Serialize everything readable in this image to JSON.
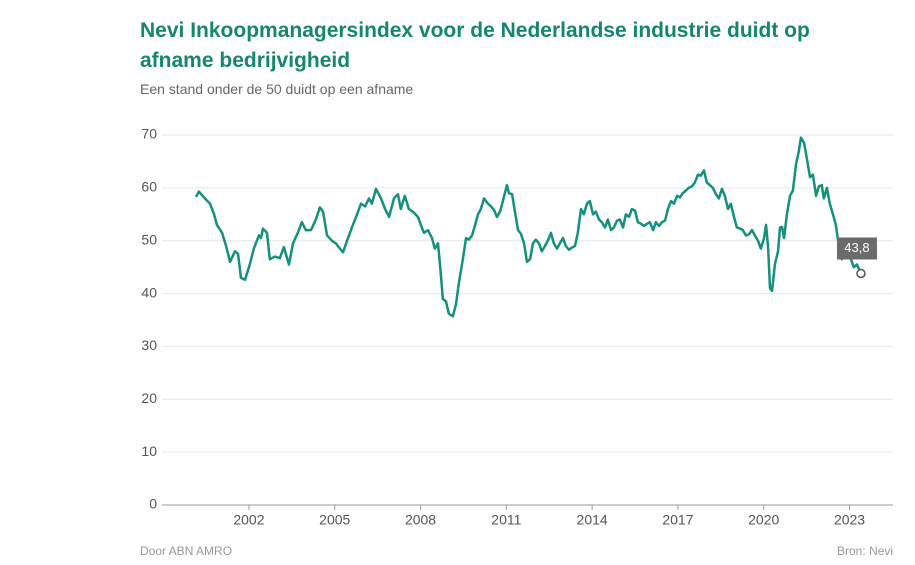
{
  "chart_data": {
    "type": "line",
    "title": "Nevi Inkoopmanagersindex voor de Nederlandse industrie duidt op afname bedrijvigheid",
    "subtitle": "Een stand onder de 50 duidt op een afname",
    "credit": "Door ABN AMRO",
    "source": "Bron: Nevi",
    "xlim": [
      1998.96,
      2024.52
    ],
    "xticks": [
      2002,
      2005,
      2008,
      2011,
      2014,
      2017,
      2020,
      2023
    ],
    "ylim": [
      0,
      70
    ],
    "yticks": [
      0,
      10,
      20,
      30,
      40,
      50,
      60,
      70
    ],
    "grid": true,
    "x": [
      2000.15,
      2000.25,
      2000.46,
      2000.64,
      2000.78,
      2000.88,
      2001.06,
      2001.2,
      2001.34,
      2001.51,
      2001.62,
      2001.72,
      2001.86,
      2002.03,
      2002.17,
      2002.35,
      2002.42,
      2002.49,
      2002.63,
      2002.73,
      2002.91,
      2003.08,
      2003.22,
      2003.4,
      2003.54,
      2003.71,
      2003.85,
      2003.99,
      2004.17,
      2004.34,
      2004.48,
      2004.59,
      2004.73,
      2004.9,
      2005.04,
      2005.18,
      2005.29,
      2005.43,
      2005.6,
      2005.78,
      2005.92,
      2006.06,
      2006.2,
      2006.3,
      2006.44,
      2006.62,
      2006.76,
      2006.9,
      2007.07,
      2007.21,
      2007.31,
      2007.45,
      2007.59,
      2007.73,
      2007.91,
      2008.01,
      2008.12,
      2008.26,
      2008.4,
      2008.5,
      2008.61,
      2008.68,
      2008.78,
      2008.89,
      2008.99,
      2009.13,
      2009.24,
      2009.34,
      2009.48,
      2009.59,
      2009.69,
      2009.8,
      2009.9,
      2010.01,
      2010.11,
      2010.22,
      2010.36,
      2010.46,
      2010.57,
      2010.67,
      2010.78,
      2010.88,
      2011.02,
      2011.09,
      2011.2,
      2011.3,
      2011.41,
      2011.51,
      2011.62,
      2011.72,
      2011.83,
      2011.93,
      2012.03,
      2012.14,
      2012.24,
      2012.35,
      2012.45,
      2012.56,
      2012.66,
      2012.77,
      2012.87,
      2012.98,
      2013.08,
      2013.19,
      2013.29,
      2013.4,
      2013.5,
      2013.61,
      2013.71,
      2013.82,
      2013.92,
      2014.03,
      2014.13,
      2014.24,
      2014.34,
      2014.45,
      2014.55,
      2014.66,
      2014.76,
      2014.87,
      2014.97,
      2015.08,
      2015.18,
      2015.29,
      2015.39,
      2015.5,
      2015.6,
      2015.71,
      2015.81,
      2015.92,
      2016.02,
      2016.13,
      2016.23,
      2016.34,
      2016.44,
      2016.55,
      2016.65,
      2016.76,
      2016.86,
      2016.97,
      2017.07,
      2017.17,
      2017.28,
      2017.38,
      2017.49,
      2017.59,
      2017.7,
      2017.8,
      2017.91,
      2018.01,
      2018.12,
      2018.22,
      2018.33,
      2018.43,
      2018.54,
      2018.64,
      2018.75,
      2018.85,
      2018.96,
      2019.06,
      2019.17,
      2019.27,
      2019.38,
      2019.48,
      2019.59,
      2019.69,
      2019.8,
      2019.9,
      2020.01,
      2020.08,
      2020.15,
      2020.22,
      2020.29,
      2020.39,
      2020.5,
      2020.57,
      2020.64,
      2020.71,
      2020.81,
      2020.92,
      2021.02,
      2021.13,
      2021.23,
      2021.3,
      2021.41,
      2021.51,
      2021.62,
      2021.72,
      2021.83,
      2021.93,
      2022.03,
      2022.1,
      2022.21,
      2022.31,
      2022.42,
      2022.52,
      2022.63,
      2022.73,
      2022.84,
      2022.94,
      2023.05,
      2023.15,
      2023.26,
      2023.4
    ],
    "series": [
      {
        "color": "#14917d",
        "values": [
          58.3,
          59.3,
          58,
          57,
          55,
          53,
          51.5,
          49,
          46,
          48,
          47.5,
          43,
          42.6,
          45.5,
          48.5,
          51,
          50.5,
          52.3,
          51.5,
          46.5,
          47,
          46.7,
          48.8,
          45.5,
          49.5,
          51.5,
          53.5,
          52,
          52,
          54,
          56.3,
          55.5,
          51,
          50,
          49.5,
          48.5,
          47.8,
          50,
          52.5,
          55,
          57,
          56.5,
          58,
          57,
          59.8,
          58,
          56,
          54.5,
          58,
          58.8,
          56,
          58.5,
          56,
          55.5,
          54.5,
          53,
          51.5,
          52,
          50.5,
          48.5,
          49.5,
          45.5,
          39,
          38.5,
          36.2,
          35.7,
          38,
          42,
          46.5,
          50.5,
          50.2,
          51,
          52.8,
          55,
          56,
          58,
          57,
          56.5,
          55.8,
          54.5,
          55.5,
          57.5,
          60.5,
          59,
          58.8,
          55.5,
          52,
          51.3,
          49.5,
          46,
          46.5,
          49.5,
          50.2,
          49.5,
          48,
          49,
          50,
          51.5,
          49.5,
          48.5,
          49.5,
          50.5,
          49,
          48.3,
          48.7,
          49,
          51.5,
          56,
          55,
          57,
          57.5,
          55,
          55.5,
          54,
          53.5,
          52.5,
          54,
          52,
          52.5,
          53.8,
          54,
          52.5,
          55,
          54.5,
          56,
          55.7,
          53.5,
          53.2,
          52.8,
          53.2,
          53.5,
          52,
          53.5,
          52.8,
          53.5,
          53.8,
          56,
          57.5,
          57,
          58.5,
          58.2,
          59,
          59.5,
          60,
          60.3,
          61,
          62.5,
          62.3,
          63.3,
          61,
          60.5,
          60,
          58.8,
          58,
          59.8,
          58.5,
          56,
          57,
          54.5,
          52.5,
          52.3,
          52,
          51,
          51.2,
          52,
          51,
          50,
          48.5,
          50.5,
          53,
          49,
          41,
          40.5,
          45.5,
          48,
          52.5,
          52.6,
          50.5,
          55,
          58.5,
          59.5,
          64.5,
          67,
          69.5,
          68.5,
          65.5,
          62,
          62.5,
          58.5,
          60.3,
          60.5,
          58,
          60,
          57,
          55,
          53,
          49,
          46.5,
          48,
          47,
          46.5,
          45,
          45.5,
          43.8
        ]
      }
    ],
    "annotations": [
      {
        "label": "43,8",
        "x": 2023.4,
        "y": 43.8
      }
    ]
  }
}
